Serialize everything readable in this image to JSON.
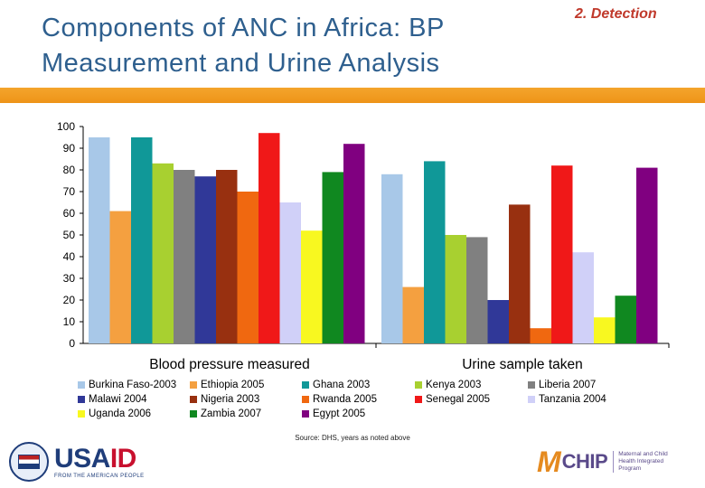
{
  "title": {
    "line1": "Components of ANC in Africa: BP",
    "line2": "Measurement and Urine Analysis"
  },
  "section_tag": "2. Detection",
  "source_note": "Source: DHS, years as noted above",
  "logos": {
    "usaid": {
      "word_us": "USA",
      "word_id": "ID",
      "tagline": "FROM THE AMERICAN PEOPLE"
    },
    "mchip": {
      "mark": "M",
      "word": "CHIP",
      "tagline": "Maternal and Child Health Integrated Program"
    }
  },
  "colors": {
    "accent_rule": "#f4a52c",
    "title": "#2e5f8e",
    "section_tag": "#c0392b"
  },
  "chart_data": {
    "type": "bar",
    "categories": [
      "Blood pressure measured",
      "Urine sample taken"
    ],
    "ylim": [
      0,
      100
    ],
    "yticks": [
      0,
      10,
      20,
      30,
      40,
      50,
      60,
      70,
      80,
      90,
      100
    ],
    "grid": false,
    "legend_position": "bottom",
    "xlabel": "",
    "ylabel": "",
    "series": [
      {
        "name": "Burkina Faso-2003",
        "color": "#a8c8e8",
        "values": [
          95,
          78
        ]
      },
      {
        "name": "Ethiopia 2005",
        "color": "#f4a040",
        "values": [
          61,
          26
        ]
      },
      {
        "name": "Ghana 2003",
        "color": "#109898",
        "values": [
          95,
          84
        ]
      },
      {
        "name": "Kenya 2003",
        "color": "#a8d030",
        "values": [
          83,
          50
        ]
      },
      {
        "name": "Liberia 2007",
        "color": "#808080",
        "values": [
          80,
          49
        ]
      },
      {
        "name": "Malawi 2004",
        "color": "#303898",
        "values": [
          77,
          20
        ]
      },
      {
        "name": "Nigeria 2003",
        "color": "#983010",
        "values": [
          80,
          64
        ]
      },
      {
        "name": "Rwanda 2005",
        "color": "#f06810",
        "values": [
          70,
          7
        ]
      },
      {
        "name": "Senegal 2005",
        "color": "#f01818",
        "values": [
          97,
          82
        ]
      },
      {
        "name": "Tanzania 2004",
        "color": "#d0d0f8",
        "values": [
          65,
          42
        ]
      },
      {
        "name": "Uganda 2006",
        "color": "#f8f820",
        "values": [
          52,
          12
        ]
      },
      {
        "name": "Zambia 2007",
        "color": "#108820",
        "values": [
          79,
          22
        ]
      },
      {
        "name": "Egypt 2005",
        "color": "#800080",
        "values": [
          92,
          81
        ]
      }
    ]
  }
}
